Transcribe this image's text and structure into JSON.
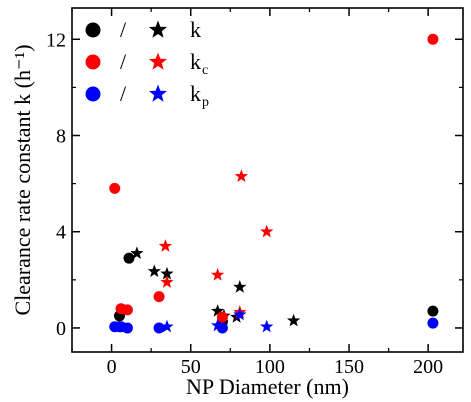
{
  "chart_data": {
    "type": "scatter",
    "xlabel": "NP Diameter (nm)",
    "ylabel": "Clearance rate constant k (h⁻¹)",
    "xlim": [
      -25,
      222
    ],
    "ylim": [
      -1.0,
      13.3
    ],
    "xticks": [
      0,
      50,
      100,
      150,
      200
    ],
    "yticks": [
      0,
      4,
      8,
      12
    ],
    "xtick_labels": [
      "0",
      "50",
      "100",
      "150",
      "200"
    ],
    "ytick_labels": [
      "0",
      "4",
      "8",
      "12"
    ],
    "legend_position": "top-left",
    "legend": [
      {
        "separator": "/",
        "label": "k",
        "subscript": "",
        "color": "#000000"
      },
      {
        "separator": "/",
        "label": "k",
        "subscript": "c",
        "color": "#ff0000"
      },
      {
        "separator": "/",
        "label": "k",
        "subscript": "p",
        "color": "#0000ff"
      }
    ],
    "series": [
      {
        "name": "k",
        "marker": "circle",
        "color": "#000000",
        "points": [
          [
            5,
            0.5
          ],
          [
            11,
            2.9
          ],
          [
            70,
            0.25
          ],
          [
            203,
            0.7
          ]
        ]
      },
      {
        "name": "k",
        "marker": "star",
        "color": "#000000",
        "points": [
          [
            16,
            3.1
          ],
          [
            27,
            2.35
          ],
          [
            35,
            2.25
          ],
          [
            67,
            0.7
          ],
          [
            71,
            0.5
          ],
          [
            81,
            1.7
          ],
          [
            79,
            0.45
          ],
          [
            115,
            0.3
          ]
        ]
      },
      {
        "name": "kc",
        "marker": "circle",
        "color": "#ff0000",
        "points": [
          [
            2,
            5.8
          ],
          [
            6,
            0.8
          ],
          [
            10,
            0.75
          ],
          [
            30,
            1.3
          ],
          [
            70,
            0.45
          ],
          [
            203,
            12.0
          ]
        ]
      },
      {
        "name": "kc",
        "marker": "star",
        "color": "#ff0000",
        "points": [
          [
            34,
            3.4
          ],
          [
            35,
            1.9
          ],
          [
            67,
            2.2
          ],
          [
            82,
            6.3
          ],
          [
            98,
            4.0
          ],
          [
            81,
            0.65
          ]
        ]
      },
      {
        "name": "kp",
        "marker": "circle",
        "color": "#0000ff",
        "points": [
          [
            2,
            0.05
          ],
          [
            5,
            0.05
          ],
          [
            6,
            0.05
          ],
          [
            10,
            0.0
          ],
          [
            30,
            0.0
          ],
          [
            70,
            0.0
          ],
          [
            203,
            0.2
          ]
        ]
      },
      {
        "name": "kp",
        "marker": "star",
        "color": "#0000ff",
        "points": [
          [
            35,
            0.05
          ],
          [
            67,
            0.1
          ],
          [
            81,
            0.55
          ],
          [
            98,
            0.05
          ]
        ]
      }
    ]
  }
}
